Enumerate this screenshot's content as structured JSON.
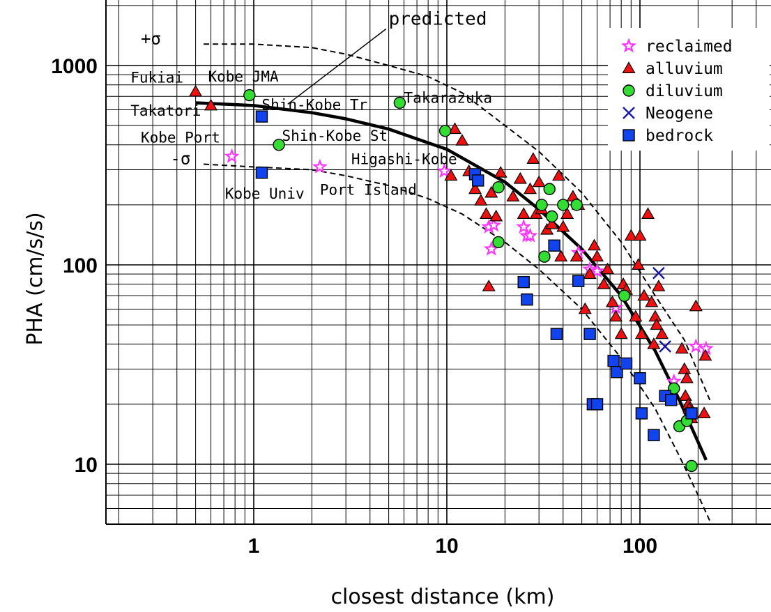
{
  "chart_data": {
    "type": "scatter",
    "xscale": "log",
    "yscale": "log",
    "xlim": [
      0.2,
      500
    ],
    "ylim": [
      5,
      2000
    ],
    "xlabel": "closest distance (km)",
    "ylabel": "PHA (cm/s/s)",
    "xticks": [
      {
        "value": 1,
        "label": "1"
      },
      {
        "value": 10,
        "label": "10"
      },
      {
        "value": 100,
        "label": "100"
      }
    ],
    "yticks": [
      {
        "value": 10,
        "label": "10"
      },
      {
        "value": 100,
        "label": "100"
      },
      {
        "value": 1000,
        "label": "1000"
      }
    ],
    "grid": true,
    "legend_position": "top-right",
    "series": [
      {
        "name": "reclaimed",
        "marker": "star",
        "color": "#ff33ff",
        "points": [
          [
            0.77,
            350
          ],
          [
            2.2,
            310
          ],
          [
            9.7,
            295
          ],
          [
            16.5,
            155
          ],
          [
            17,
            120
          ],
          [
            17.5,
            158
          ],
          [
            25,
            155
          ],
          [
            26,
            140
          ],
          [
            27,
            140
          ],
          [
            48,
            115
          ],
          [
            55,
            95
          ],
          [
            60,
            93
          ],
          [
            75,
            61
          ],
          [
            150,
            26
          ],
          [
            195,
            39
          ],
          [
            220,
            38
          ]
        ]
      },
      {
        "name": "alluvium",
        "marker": "triangle",
        "color": "#ee1111",
        "points": [
          [
            0.5,
            740
          ],
          [
            0.6,
            630
          ],
          [
            10.5,
            280
          ],
          [
            11,
            480
          ],
          [
            12,
            420
          ],
          [
            13,
            295
          ],
          [
            14,
            240
          ],
          [
            15,
            210
          ],
          [
            16,
            180
          ],
          [
            16.5,
            78
          ],
          [
            17,
            230
          ],
          [
            18,
            175
          ],
          [
            19,
            290
          ],
          [
            22,
            220
          ],
          [
            24,
            270
          ],
          [
            25,
            180
          ],
          [
            27,
            240
          ],
          [
            28,
            340
          ],
          [
            29,
            180
          ],
          [
            30,
            260
          ],
          [
            31,
            190
          ],
          [
            33,
            150
          ],
          [
            35,
            160
          ],
          [
            38,
            280
          ],
          [
            39,
            110
          ],
          [
            40,
            155
          ],
          [
            42,
            180
          ],
          [
            45,
            220
          ],
          [
            47,
            110
          ],
          [
            48,
            200
          ],
          [
            52,
            60
          ],
          [
            55,
            90
          ],
          [
            58,
            125
          ],
          [
            60,
            110
          ],
          [
            65,
            80
          ],
          [
            68,
            95
          ],
          [
            72,
            65
          ],
          [
            75,
            55
          ],
          [
            80,
            45
          ],
          [
            82,
            80
          ],
          [
            85,
            75
          ],
          [
            90,
            140
          ],
          [
            95,
            55
          ],
          [
            98,
            100
          ],
          [
            100,
            140
          ],
          [
            102,
            45
          ],
          [
            105,
            70
          ],
          [
            110,
            180
          ],
          [
            115,
            65
          ],
          [
            118,
            40
          ],
          [
            120,
            55
          ],
          [
            122,
            50
          ],
          [
            125,
            78
          ],
          [
            130,
            45
          ],
          [
            165,
            38
          ],
          [
            170,
            30
          ],
          [
            172,
            22
          ],
          [
            175,
            27
          ],
          [
            178,
            20
          ],
          [
            180,
            19
          ],
          [
            185,
            17
          ],
          [
            195,
            62
          ],
          [
            215,
            18
          ],
          [
            218,
            35
          ]
        ]
      },
      {
        "name": "diluvium",
        "marker": "circle",
        "color": "#33dd33",
        "points": [
          [
            0.95,
            710
          ],
          [
            1.35,
            400
          ],
          [
            5.7,
            650
          ],
          [
            9.8,
            470
          ],
          [
            18.5,
            130
          ],
          [
            18.5,
            245
          ],
          [
            31,
            200
          ],
          [
            32,
            110
          ],
          [
            34,
            240
          ],
          [
            35,
            175
          ],
          [
            40,
            200
          ],
          [
            47,
            200
          ],
          [
            83,
            70
          ],
          [
            150,
            24
          ],
          [
            160,
            15.5
          ],
          [
            175,
            16.5
          ],
          [
            185,
            9.8
          ]
        ]
      },
      {
        "name": "Neogene",
        "marker": "x",
        "color": "#1a1a9e",
        "points": [
          [
            125,
            91
          ],
          [
            135,
            39
          ]
        ]
      },
      {
        "name": "bedrock",
        "marker": "square",
        "color": "#1144ee",
        "points": [
          [
            1.1,
            555
          ],
          [
            1.1,
            290
          ],
          [
            14,
            285
          ],
          [
            14.5,
            265
          ],
          [
            25,
            82
          ],
          [
            26,
            67
          ],
          [
            36,
            125
          ],
          [
            37,
            45
          ],
          [
            48,
            83
          ],
          [
            55,
            45
          ],
          [
            57,
            20
          ],
          [
            60,
            20
          ],
          [
            73,
            33
          ],
          [
            76,
            29
          ],
          [
            85,
            32
          ],
          [
            100,
            27
          ],
          [
            102,
            18
          ],
          [
            118,
            14
          ],
          [
            135,
            22
          ],
          [
            145,
            21
          ],
          [
            185,
            18
          ]
        ]
      }
    ],
    "lines": [
      {
        "name": "predicted",
        "style": "solid",
        "points": [
          [
            0.5,
            650
          ],
          [
            1,
            630
          ],
          [
            2,
            580
          ],
          [
            3,
            540
          ],
          [
            5,
            480
          ],
          [
            10,
            380
          ],
          [
            20,
            260
          ],
          [
            30,
            190
          ],
          [
            50,
            120
          ],
          [
            80,
            70
          ],
          [
            120,
            37
          ],
          [
            160,
            21
          ],
          [
            220,
            10.5
          ]
        ]
      },
      {
        "name": "+σ",
        "style": "dashed",
        "points": [
          [
            0.55,
            1280
          ],
          [
            1,
            1280
          ],
          [
            2,
            1230
          ],
          [
            3,
            1140
          ],
          [
            5,
            1000
          ],
          [
            8,
            880
          ],
          [
            12,
            730
          ],
          [
            20,
            500
          ],
          [
            30,
            370
          ],
          [
            50,
            230
          ],
          [
            80,
            130
          ],
          [
            120,
            70
          ],
          [
            170,
            42
          ],
          [
            230,
            21
          ]
        ]
      },
      {
        "name": "-σ",
        "style": "dashed",
        "points": [
          [
            0.55,
            320
          ],
          [
            1,
            310
          ],
          [
            2,
            300
          ],
          [
            3,
            280
          ],
          [
            5,
            250
          ],
          [
            8,
            215
          ],
          [
            12,
            180
          ],
          [
            20,
            130
          ],
          [
            30,
            95
          ],
          [
            50,
            60
          ],
          [
            80,
            34
          ],
          [
            120,
            19
          ],
          [
            160,
            11
          ],
          [
            200,
            7
          ],
          [
            230,
            5.2
          ]
        ]
      }
    ],
    "annotations": [
      {
        "text": "predicted",
        "x": 5,
        "y": 1600
      },
      {
        "text": "+σ",
        "x": 0.26,
        "y": 1280
      },
      {
        "text": "-σ",
        "x": 0.37,
        "y": 320
      },
      {
        "text": "Fukiai",
        "x": 0.23,
        "y": 820
      },
      {
        "text": "Kobe JMA",
        "x": 0.58,
        "y": 830
      },
      {
        "text": "Takarazuka",
        "x": 6,
        "y": 650
      },
      {
        "text": "Shin-Kobe Tr",
        "x": 1.1,
        "y": 600
      },
      {
        "text": "Takatori",
        "x": 0.23,
        "y": 560
      },
      {
        "text": "Shin-Kobe St",
        "x": 1.4,
        "y": 420
      },
      {
        "text": "Kobe Port",
        "x": 0.26,
        "y": 410
      },
      {
        "text": "Higashi-Kobe",
        "x": 3.2,
        "y": 320
      },
      {
        "text": "Kobe Univ",
        "x": 0.71,
        "y": 215
      },
      {
        "text": "Port Island",
        "x": 2.2,
        "y": 225
      }
    ]
  }
}
